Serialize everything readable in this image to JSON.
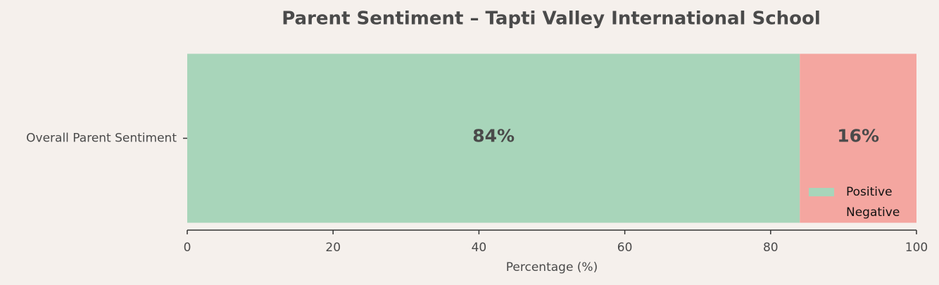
{
  "chart_data": {
    "type": "bar",
    "orientation": "horizontal",
    "stacked": true,
    "title": "Parent Sentiment – Tapti Valley International School",
    "xlabel": "Percentage (%)",
    "categories": [
      "Overall Parent Sentiment"
    ],
    "series": [
      {
        "name": "Positive",
        "color": "#a8d5ba",
        "values": [
          84
        ],
        "value_labels": [
          "84%"
        ]
      },
      {
        "name": "Negative",
        "color": "#f4a6a0",
        "values": [
          16
        ],
        "value_labels": [
          "16%"
        ]
      }
    ],
    "xlim": [
      0,
      100
    ],
    "xticks": [
      0,
      20,
      40,
      60,
      80,
      100
    ],
    "legend": "lower right",
    "grid": false
  }
}
